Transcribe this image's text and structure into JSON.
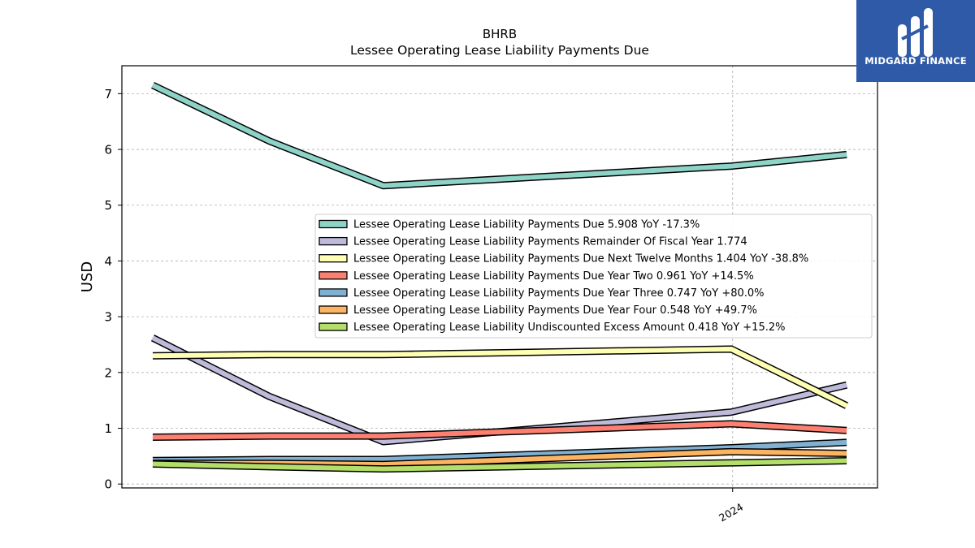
{
  "chart_data": {
    "type": "line",
    "title": "BHRB",
    "subtitle": "Lessee Operating Lease Liability Payments Due",
    "xlabel": "",
    "ylabel": "USD",
    "x": [
      "2022-09-30",
      "2022-12-31",
      "2023-03-31",
      "2023-12-31",
      "2024-03-31"
    ],
    "x_tick_labels": [
      {
        "x": "2024-01-01",
        "label": "2024"
      }
    ],
    "y_ticks": [
      0,
      1,
      2,
      3,
      4,
      5,
      6,
      7
    ],
    "ylim": [
      -0.07,
      7.5
    ],
    "grid": true,
    "legend_position": "center-right",
    "series": [
      {
        "name": "Lessee Operating Lease Liability Payments Due  5.908 YoY -17.3%",
        "color": "#8dd3c7",
        "values": [
          7.15,
          6.15,
          5.35,
          5.7,
          5.908
        ]
      },
      {
        "name": "Lessee Operating Lease Liability Payments Remainder Of Fiscal Year  1.774",
        "color": "#bebada",
        "values": [
          2.62,
          1.57,
          0.76,
          1.29,
          1.774
        ]
      },
      {
        "name": "Lessee Operating Lease Liability Payments Due Next Twelve Months  1.404 YoY -38.8%",
        "color": "#ffffb3",
        "values": [
          2.3,
          2.32,
          2.32,
          2.42,
          1.404
        ]
      },
      {
        "name": "Lessee Operating Lease Liability Payments Due Year Two  0.961 YoY +14.5%",
        "color": "#fb8072",
        "values": [
          0.84,
          0.86,
          0.86,
          1.08,
          0.961
        ]
      },
      {
        "name": "Lessee Operating Lease Liability Payments Due Year Three  0.747 YoY +80.0%",
        "color": "#80b1d3",
        "values": [
          0.42,
          0.44,
          0.44,
          0.65,
          0.747
        ]
      },
      {
        "name": "Lessee Operating Lease Liability Payments Due Year Four  0.548 YoY +49.7%",
        "color": "#fdb462",
        "values": [
          0.37,
          0.37,
          0.35,
          0.58,
          0.548
        ]
      },
      {
        "name": "Lessee Operating Lease Liability Undiscounted Excess Amount  0.418 YoY +15.2%",
        "color": "#b3de69",
        "values": [
          0.36,
          0.31,
          0.27,
          0.38,
          0.418
        ]
      }
    ]
  },
  "logo": {
    "text": "MIDGARD FINANCE",
    "color": "#2f5aa8"
  }
}
